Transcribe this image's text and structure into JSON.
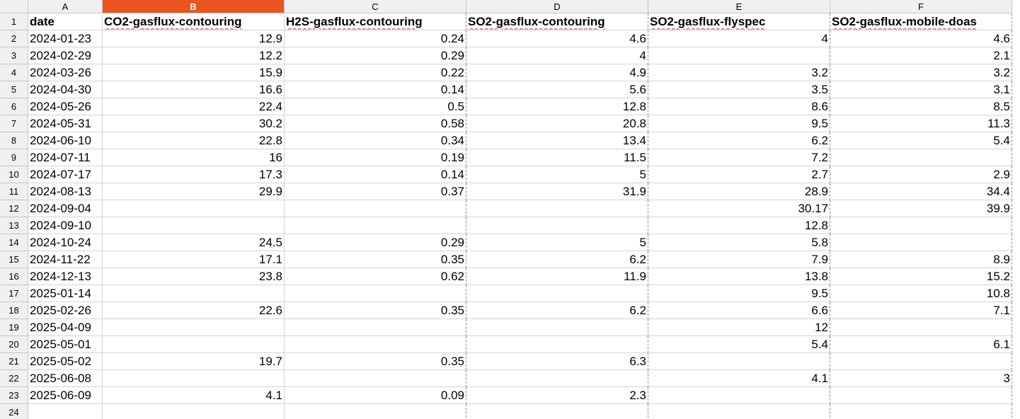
{
  "columns": [
    "A",
    "B",
    "C",
    "D",
    "E",
    "F"
  ],
  "selected_column": "B",
  "headers": [
    "date",
    "CO2-gasflux-contouring",
    "H2S-gasflux-contouring",
    "SO2-gasflux-contouring",
    "SO2-gasflux-flyspec",
    "SO2-gasflux-mobile-doas"
  ],
  "rows": [
    [
      "2024-01-23",
      "12.9",
      "0.24",
      "4.6",
      "4",
      "4.6"
    ],
    [
      "2024-02-29",
      "12.2",
      "0.29",
      "4",
      "",
      "2.1"
    ],
    [
      "2024-03-26",
      "15.9",
      "0.22",
      "4.9",
      "3.2",
      "3.2"
    ],
    [
      "2024-04-30",
      "16.6",
      "0.14",
      "5.6",
      "3.5",
      "3.1"
    ],
    [
      "2024-05-26",
      "22.4",
      "0.5",
      "12.8",
      "8.6",
      "8.5"
    ],
    [
      "2024-05-31",
      "30.2",
      "0.58",
      "20.8",
      "9.5",
      "11.3"
    ],
    [
      "2024-06-10",
      "22.8",
      "0.34",
      "13.4",
      "6.2",
      "5.4"
    ],
    [
      "2024-07-11",
      "16",
      "0.19",
      "11.5",
      "7.2",
      ""
    ],
    [
      "2024-07-17",
      "17.3",
      "0.14",
      "5",
      "2.7",
      "2.9"
    ],
    [
      "2024-08-13",
      "29.9",
      "0.37",
      "31.9",
      "28.9",
      "34.4"
    ],
    [
      "2024-09-04",
      "",
      "",
      "",
      "30.17",
      "39.9"
    ],
    [
      "2024-09-10",
      "",
      "",
      "",
      "12.8",
      ""
    ],
    [
      "2024-10-24",
      "24.5",
      "0.29",
      "5",
      "5.8",
      ""
    ],
    [
      "2024-11-22",
      "17.1",
      "0.35",
      "6.2",
      "7.9",
      "8.9"
    ],
    [
      "2024-12-13",
      "23.8",
      "0.62",
      "11.9",
      "13.8",
      "15.2"
    ],
    [
      "2025-01-14",
      "",
      "",
      "",
      "9.5",
      "10.8"
    ],
    [
      "2025-02-26",
      "22.6",
      "0.35",
      "6.2",
      "6.6",
      "7.1"
    ],
    [
      "2025-04-09",
      "",
      "",
      "",
      "12",
      ""
    ],
    [
      "2025-05-01",
      "",
      "",
      "",
      "5.4",
      "6.1"
    ],
    [
      "2025-05-02",
      "19.7",
      "0.35",
      "6.3",
      "",
      ""
    ],
    [
      "2025-06-08",
      "",
      "",
      "",
      "4.1",
      "3"
    ],
    [
      "2025-06-09",
      "4.1",
      "0.09",
      "2.3",
      "",
      ""
    ]
  ],
  "row_numbers": [
    "1",
    "2",
    "3",
    "4",
    "5",
    "6",
    "7",
    "8",
    "9",
    "10",
    "11",
    "12",
    "13",
    "14",
    "15",
    "16",
    "17",
    "18",
    "19",
    "20",
    "21",
    "22",
    "23",
    "24"
  ],
  "colors": {
    "selected_header": "#e9541f",
    "header_bg": "#f0f0f0",
    "grid": "#d4d4d4",
    "spell_underline": "#e0312a"
  }
}
